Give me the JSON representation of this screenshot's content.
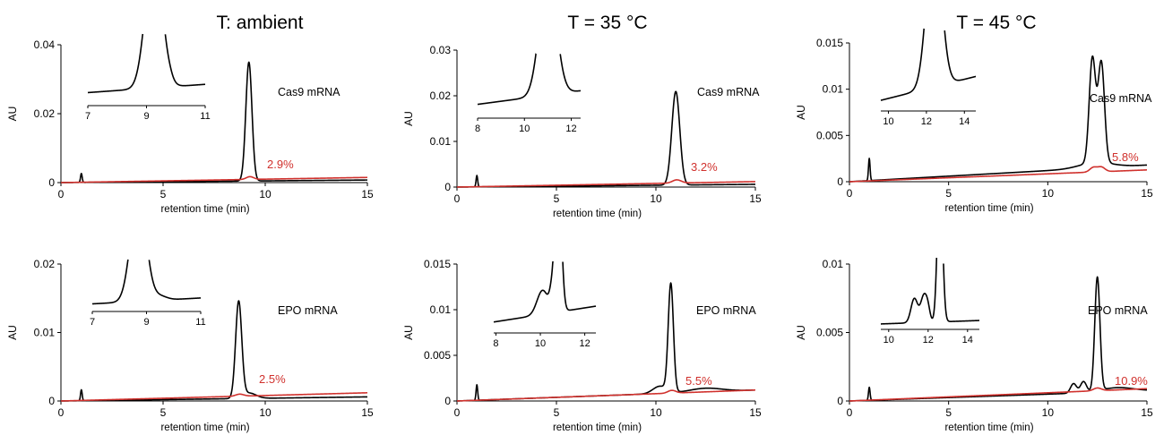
{
  "column_titles": [
    "T: ambient",
    "T = 35 °C",
    "T = 45 °C"
  ],
  "colors": {
    "main": "#000000",
    "highlight": "#d0312d"
  },
  "chart_data": [
    {
      "id": "amb-cas9",
      "type": "line",
      "title": "T: ambient",
      "sample": "Cas9 mRNA",
      "percent_label": "2.9%",
      "xlabel": "retention time (min)",
      "ylabel": "AU",
      "xlim": [
        0,
        15
      ],
      "ylim": [
        0,
        0.04
      ],
      "xticks": [
        0,
        5,
        10,
        15
      ],
      "yticks": [
        0,
        0.02,
        0.04
      ],
      "ytick_labels": [
        "0",
        "0.02",
        "0.04"
      ],
      "peak_center": 9.2,
      "peak_value": 0.0345,
      "inset": {
        "xlim": [
          7,
          11
        ],
        "xticks": [
          7,
          9,
          11
        ]
      }
    },
    {
      "id": "35-cas9",
      "type": "line",
      "title": "T = 35 °C",
      "sample": "Cas9 mRNA",
      "percent_label": "3.2%",
      "xlabel": "retention time (min)",
      "ylabel": "AU",
      "xlim": [
        0,
        15
      ],
      "ylim": [
        0,
        0.03
      ],
      "xticks": [
        0,
        5,
        10,
        15
      ],
      "yticks": [
        0,
        0.01,
        0.02,
        0.03
      ],
      "ytick_labels": [
        "0",
        "0.01",
        "0.02",
        "0.03"
      ],
      "peak_center": 11.0,
      "peak_value": 0.0205,
      "inset": {
        "xlim": [
          8,
          12.4
        ],
        "xticks": [
          8,
          10,
          12
        ]
      }
    },
    {
      "id": "45-cas9",
      "type": "line",
      "title": "T = 45 °C",
      "sample": "Cas9 mRNA",
      "percent_label": "5.8%",
      "xlabel": "retention time (min)",
      "ylabel": "AU",
      "xlim": [
        0,
        15
      ],
      "ylim": [
        0,
        0.015
      ],
      "xticks": [
        0,
        5,
        10,
        15
      ],
      "yticks": [
        0,
        0.005,
        0.01,
        0.015
      ],
      "ytick_labels": [
        "0",
        "0.005",
        "0.01",
        "0.015"
      ],
      "peak_center": 12.3,
      "peak_value": 0.013,
      "inset": {
        "xlim": [
          9.6,
          14.6
        ],
        "xticks": [
          10,
          12,
          14
        ]
      }
    },
    {
      "id": "amb-epo",
      "type": "line",
      "sample": "EPO mRNA",
      "percent_label": "2.5%",
      "xlabel": "retention time (min)",
      "ylabel": "AU",
      "xlim": [
        0,
        15
      ],
      "ylim": [
        0,
        0.02
      ],
      "xticks": [
        0,
        5,
        10,
        15
      ],
      "yticks": [
        0,
        0.01,
        0.02
      ],
      "ytick_labels": [
        "0",
        "0.01",
        "0.02"
      ],
      "peak_center": 8.7,
      "peak_value": 0.0146,
      "inset": {
        "xlim": [
          7,
          11
        ],
        "xticks": [
          7,
          9,
          11
        ]
      }
    },
    {
      "id": "35-epo",
      "type": "line",
      "sample": "EPO mRNA",
      "percent_label": "5.5%",
      "xlabel": "retention time (min)",
      "ylabel": "AU",
      "xlim": [
        0,
        15
      ],
      "ylim": [
        0,
        0.015
      ],
      "xticks": [
        0,
        5,
        10,
        15
      ],
      "yticks": [
        0,
        0.005,
        0.01,
        0.015
      ],
      "ytick_labels": [
        "0",
        "0.005",
        "0.01",
        "0.015"
      ],
      "peak_center": 10.7,
      "peak_value": 0.0123,
      "inset": {
        "xlim": [
          7.9,
          12.5
        ],
        "xticks": [
          8,
          10,
          12
        ]
      }
    },
    {
      "id": "45-epo",
      "type": "line",
      "sample": "EPO mRNA",
      "percent_label": "10.9%",
      "xlabel": "retention time (min)",
      "ylabel": "AU",
      "xlim": [
        0,
        15
      ],
      "ylim": [
        0,
        0.01
      ],
      "xticks": [
        0,
        5,
        10,
        15
      ],
      "yticks": [
        0,
        0.005,
        0.01
      ],
      "ytick_labels": [
        "0",
        "0.005",
        "0.01"
      ],
      "peak_center": 12.5,
      "peak_value": 0.009,
      "inset": {
        "xlim": [
          9.6,
          14.6
        ],
        "xticks": [
          10,
          12,
          14
        ]
      }
    }
  ]
}
